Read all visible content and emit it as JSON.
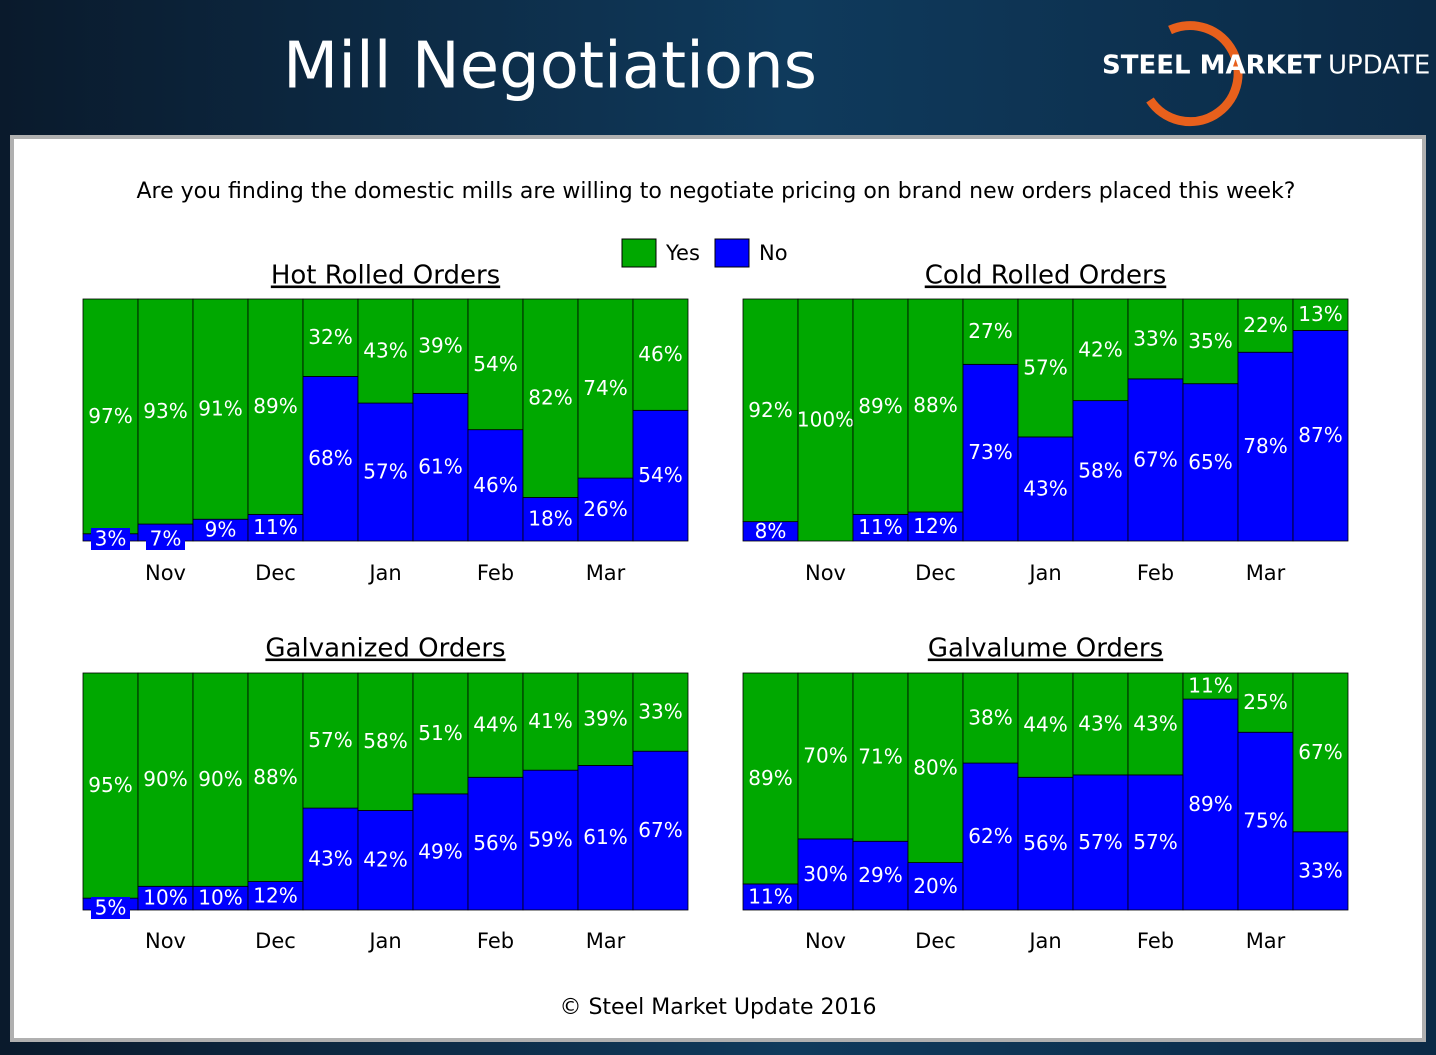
{
  "title": "Mill Negotiations",
  "logo": {
    "bold": "STEEL MARKET",
    "light": "UPDATE"
  },
  "question": "Are you finding the domestic mills are willing to negotiate pricing on brand new orders placed this week?",
  "legend": {
    "items": [
      {
        "name": "Yes",
        "color": "#00a800"
      },
      {
        "name": "No",
        "color": "#0000ff"
      }
    ]
  },
  "footer": "© Steel Market Update 2016",
  "chart_data": [
    {
      "type": "bar",
      "stacked": true,
      "title": "Hot Rolled Orders",
      "categories": [
        null,
        "Nov",
        null,
        "Dec",
        null,
        "Jan",
        null,
        "Feb",
        null,
        "Mar",
        null
      ],
      "ylim": [
        0,
        100
      ],
      "series": [
        {
          "values": [
            97,
            93,
            91,
            89,
            32,
            43,
            39,
            54,
            82,
            74,
            46
          ],
          "value_labels": [
            "97%",
            "93%",
            "91%",
            "89%",
            "32%",
            "43%",
            "39%",
            "54%",
            "82%",
            "74%",
            "46%"
          ]
        },
        {
          "values": [
            3,
            7,
            9,
            11,
            68,
            57,
            61,
            46,
            18,
            26,
            54
          ],
          "value_labels": [
            "3%",
            "7%",
            "9%",
            "11%",
            "68%",
            "57%",
            "61%",
            "46%",
            "18%",
            "26%",
            "54%"
          ]
        }
      ]
    },
    {
      "type": "bar",
      "stacked": true,
      "title": "Cold Rolled Orders",
      "categories": [
        null,
        "Nov",
        null,
        "Dec",
        null,
        "Jan",
        null,
        "Feb",
        null,
        "Mar",
        null
      ],
      "ylim": [
        0,
        100
      ],
      "series": [
        {
          "values": [
            92,
            100,
            89,
            88,
            27,
            57,
            42,
            33,
            35,
            22,
            13
          ],
          "value_labels": [
            "92%",
            "100%",
            "89%",
            "88%",
            "27%",
            "57%",
            "42%",
            "33%",
            "35%",
            "22%",
            "13%"
          ]
        },
        {
          "values": [
            8,
            0,
            11,
            12,
            73,
            43,
            58,
            67,
            65,
            78,
            87
          ],
          "value_labels": [
            "8%",
            null,
            "11%",
            "12%",
            "73%",
            "43%",
            "58%",
            "67%",
            "65%",
            "78%",
            "87%"
          ]
        }
      ]
    },
    {
      "type": "bar",
      "stacked": true,
      "title": "Galvanized Orders",
      "categories": [
        null,
        "Nov",
        null,
        "Dec",
        null,
        "Jan",
        null,
        "Feb",
        null,
        "Mar",
        null
      ],
      "ylim": [
        0,
        100
      ],
      "series": [
        {
          "values": [
            95,
            90,
            90,
            88,
            57,
            58,
            51,
            44,
            41,
            39,
            33
          ],
          "value_labels": [
            "95%",
            "90%",
            "90%",
            "88%",
            "57%",
            "58%",
            "51%",
            "44%",
            "41%",
            "39%",
            "33%"
          ]
        },
        {
          "values": [
            5,
            10,
            10,
            12,
            43,
            42,
            49,
            56,
            59,
            61,
            67
          ],
          "value_labels": [
            "5%",
            "10%",
            "10%",
            "12%",
            "43%",
            "42%",
            "49%",
            "56%",
            "59%",
            "61%",
            "67%"
          ]
        }
      ]
    },
    {
      "type": "bar",
      "stacked": true,
      "title": "Galvalume Orders",
      "categories": [
        null,
        "Nov",
        null,
        "Dec",
        null,
        "Jan",
        null,
        "Feb",
        null,
        "Mar",
        null
      ],
      "ylim": [
        0,
        100
      ],
      "series": [
        {
          "values": [
            89,
            70,
            71,
            80,
            38,
            44,
            43,
            43,
            11,
            25,
            67
          ],
          "value_labels": [
            "89%",
            "70%",
            "71%",
            "80%",
            "38%",
            "44%",
            "43%",
            "43%",
            "11%",
            "25%",
            "67%"
          ]
        },
        {
          "values": [
            11,
            30,
            29,
            20,
            62,
            56,
            57,
            57,
            89,
            75,
            33
          ],
          "value_labels": [
            "11%",
            "30%",
            "29%",
            "20%",
            "62%",
            "56%",
            "57%",
            "57%",
            "89%",
            "75%",
            "33%"
          ]
        }
      ]
    }
  ]
}
